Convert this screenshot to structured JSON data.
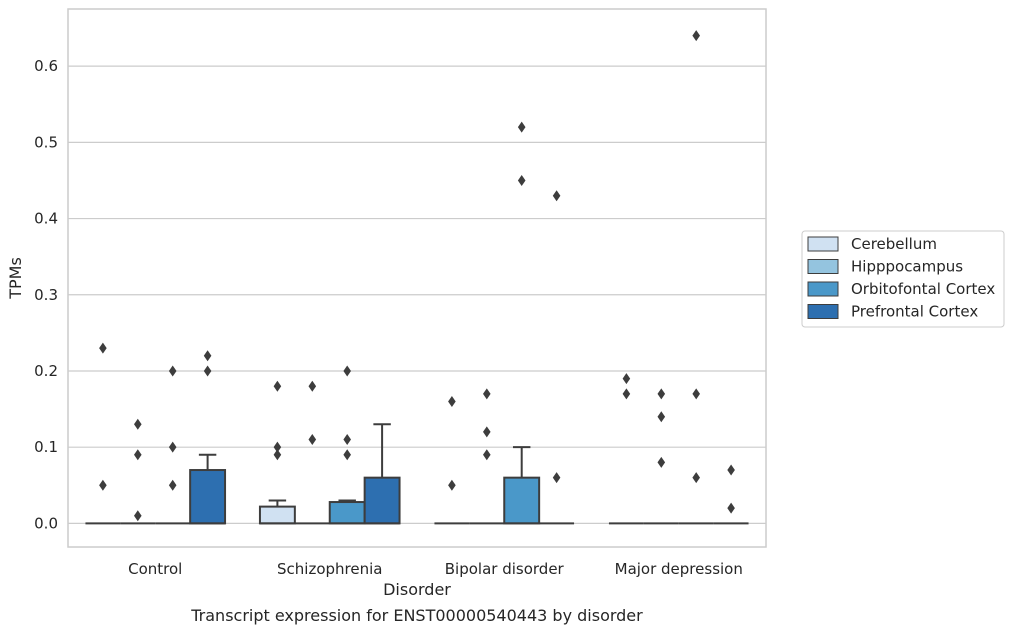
{
  "caption": "Transcript expression for ENST00000540443 by disorder",
  "chart_data": {
    "type": "box",
    "xlabel": "Disorder",
    "ylabel": "TPMs",
    "ylim": [
      -0.031,
      0.675
    ],
    "yticks": [
      0.0,
      0.1,
      0.2,
      0.3,
      0.4,
      0.5,
      0.6
    ],
    "ytick_labels": [
      "0.0",
      "0.1",
      "0.2",
      "0.3",
      "0.4",
      "0.5",
      "0.6"
    ],
    "grid": "horizontal",
    "legend_position": "right-center",
    "categories": [
      "Control",
      "Schizophrenia",
      "Bipolar disorder",
      "Major depression"
    ],
    "series": [
      {
        "name": "Cerebellum",
        "color": "#d0e1f2",
        "boxes": [
          {
            "q1": 0,
            "median": 0,
            "q3": 0,
            "whisker_low": 0,
            "whisker_high": 0,
            "outliers": [
              0.23,
              0.05
            ]
          },
          {
            "q1": 0,
            "median": 0,
            "q3": 0.022,
            "whisker_low": 0,
            "whisker_high": 0.03,
            "outliers": [
              0.18,
              0.1,
              0.09
            ]
          },
          {
            "q1": 0,
            "median": 0,
            "q3": 0,
            "whisker_low": 0,
            "whisker_high": 0,
            "outliers": [
              0.16,
              0.05
            ]
          },
          {
            "q1": 0,
            "median": 0,
            "q3": 0,
            "whisker_low": 0,
            "whisker_high": 0,
            "outliers": [
              0.19,
              0.17
            ]
          }
        ]
      },
      {
        "name": "Hipppocampus",
        "color": "#94c4df",
        "boxes": [
          {
            "q1": 0,
            "median": 0,
            "q3": 0,
            "whisker_low": 0,
            "whisker_high": 0,
            "outliers": [
              0.13,
              0.09,
              0.01
            ]
          },
          {
            "q1": 0,
            "median": 0,
            "q3": 0,
            "whisker_low": 0,
            "whisker_high": 0,
            "outliers": [
              0.18,
              0.11
            ]
          },
          {
            "q1": 0,
            "median": 0,
            "q3": 0,
            "whisker_low": 0,
            "whisker_high": 0,
            "outliers": [
              0.17,
              0.12,
              0.09
            ]
          },
          {
            "q1": 0,
            "median": 0,
            "q3": 0,
            "whisker_low": 0,
            "whisker_high": 0,
            "outliers": [
              0.17,
              0.14,
              0.08
            ]
          }
        ]
      },
      {
        "name": "Orbitofontal Cortex",
        "color": "#4a98c9",
        "boxes": [
          {
            "q1": 0,
            "median": 0,
            "q3": 0,
            "whisker_low": 0,
            "whisker_high": 0,
            "outliers": [
              0.2,
              0.1,
              0.05
            ]
          },
          {
            "q1": 0,
            "median": 0,
            "q3": 0.028,
            "whisker_low": 0,
            "whisker_high": 0.03,
            "outliers": [
              0.2,
              0.11,
              0.09
            ]
          },
          {
            "q1": 0,
            "median": 0,
            "q3": 0.06,
            "whisker_low": 0,
            "whisker_high": 0.1,
            "outliers": [
              0.52,
              0.45
            ]
          },
          {
            "q1": 0,
            "median": 0,
            "q3": 0,
            "whisker_low": 0,
            "whisker_high": 0,
            "outliers": [
              0.64,
              0.17,
              0.06
            ]
          }
        ]
      },
      {
        "name": "Prefrontal Cortex",
        "color": "#2d6fb0",
        "boxes": [
          {
            "q1": 0,
            "median": 0,
            "q3": 0.07,
            "whisker_low": 0,
            "whisker_high": 0.09,
            "outliers": [
              0.22,
              0.2
            ]
          },
          {
            "q1": 0,
            "median": 0,
            "q3": 0.06,
            "whisker_low": 0,
            "whisker_high": 0.13,
            "outliers": []
          },
          {
            "q1": 0,
            "median": 0,
            "q3": 0,
            "whisker_low": 0,
            "whisker_high": 0,
            "outliers": [
              0.43,
              0.06
            ]
          },
          {
            "q1": 0,
            "median": 0,
            "q3": 0,
            "whisker_low": 0,
            "whisker_high": 0,
            "outliers": [
              0.07,
              0.02
            ]
          }
        ]
      }
    ]
  }
}
